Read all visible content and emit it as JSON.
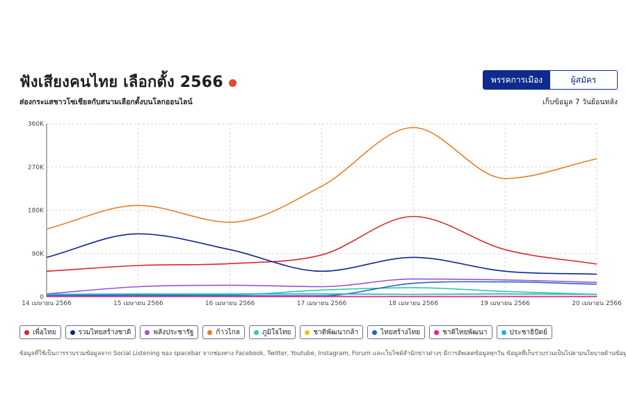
{
  "header": {
    "title": "ฟังเสียงคนไทย เลือกตั้ง 2566",
    "subtitle": "ส่องกระแสชาวโซเชียลกับสนามเลือกตั้งบนโลกออนไลน์",
    "retention": "เก็บข้อมูล 7 วันย้อนหลัง",
    "live_color": "#e8442e"
  },
  "toggle": {
    "active_label": "พรรคการเมือง",
    "inactive_label": "ผู้สมัคร",
    "accent": "#0e2a8c"
  },
  "chart_data": {
    "type": "line",
    "x": [
      "14 เมษายน 2566",
      "15 เมษายน 2566",
      "16 เมษายน 2566",
      "17 เมษายน 2566",
      "18 เมษายน 2566",
      "19 เมษายน 2566",
      "20 เมษายน 2566"
    ],
    "ylim": [
      0,
      360000
    ],
    "yticks": [
      0,
      90000,
      180000,
      270000,
      360000
    ],
    "ytick_labels": [
      "0",
      "90K",
      "180K",
      "270K",
      "360K"
    ],
    "grid": true,
    "legend_position": "bottom",
    "series": [
      {
        "name": "เพื่อไทย",
        "color": "#d62728",
        "values": [
          53000,
          65000,
          69000,
          87000,
          167000,
          98000,
          68000
        ]
      },
      {
        "name": "รวมไทยสร้างชาติ",
        "color": "#10238a",
        "values": [
          82000,
          131000,
          98000,
          53000,
          82000,
          53000,
          47000
        ]
      },
      {
        "name": "พลังประชารัฐ",
        "color": "#9b4fd6",
        "values": [
          6000,
          21000,
          24000,
          21000,
          37000,
          35000,
          30000
        ]
      },
      {
        "name": "ก้าวไกล",
        "color": "#e67e22",
        "values": [
          141000,
          190000,
          155000,
          230000,
          352000,
          246000,
          287000
        ]
      },
      {
        "name": "ภูมิใจไทย",
        "color": "#2ecc9a",
        "values": [
          4000,
          5000,
          4000,
          14000,
          19000,
          11000,
          5000
        ]
      },
      {
        "name": "ชาติพัฒนากล้า",
        "color": "#f1c40f",
        "values": [
          1000,
          1000,
          1000,
          1000,
          1000,
          1000,
          1000
        ]
      },
      {
        "name": "ไทยสร้างไทย",
        "color": "#1f63c9",
        "values": [
          2000,
          3000,
          2000,
          2000,
          28000,
          31000,
          26000
        ]
      },
      {
        "name": "ชาติไทยพัฒนา",
        "color": "#e91e8c",
        "values": [
          500,
          500,
          500,
          500,
          500,
          500,
          500
        ]
      },
      {
        "name": "ประชาธิปัตย์",
        "color": "#14b4e0",
        "values": [
          5000,
          6000,
          6000,
          6000,
          5000,
          6000,
          5000
        ]
      }
    ]
  },
  "footnote": "ข้อมูลที่ใช้เป็นการรวบรวมข้อมูลจาก Social Listening ของ spacebar จากช่องทาง Facebook, Twitter, Youtube, Instagram, Forum และเว็บไซต์สำนักข่าวต่างๆ มีการอัพเดตข้อมูลทุกวัน ข้อมูลที่เก็บรวบรวมเป็นไปตามนโยบายด้านข้อมูลของบริษัท"
}
